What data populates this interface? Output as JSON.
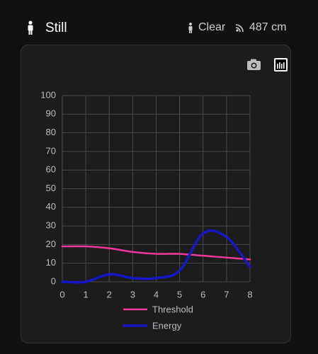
{
  "header": {
    "state": "Still",
    "presence": "Clear",
    "distance": "487 cm"
  },
  "chart_data": {
    "type": "line",
    "x": [
      0,
      1,
      2,
      3,
      4,
      5,
      6,
      7,
      8
    ],
    "series": [
      {
        "name": "Threshold",
        "color": "#f0389a",
        "values": [
          19,
          19,
          18,
          16,
          15,
          15,
          14,
          13,
          12
        ]
      },
      {
        "name": "Energy",
        "color": "#1717c8",
        "values": [
          0,
          0,
          4,
          2,
          2,
          6,
          26,
          24,
          8
        ]
      }
    ],
    "xlim": [
      0,
      8
    ],
    "xticks": [
      0,
      1,
      2,
      3,
      4,
      5,
      6,
      7,
      8
    ],
    "ylim": [
      0,
      100
    ],
    "yticks": [
      0,
      10,
      20,
      30,
      40,
      50,
      60,
      70,
      80,
      90,
      100
    ],
    "grid": true
  }
}
